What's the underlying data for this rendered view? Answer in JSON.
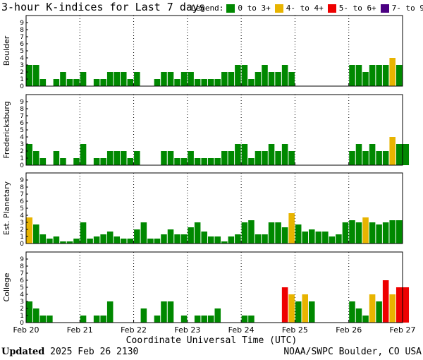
{
  "title": "3-hour K-indices for Last 7 days",
  "legend": {
    "label": "Legend:",
    "items": [
      {
        "label": "0 to 3+",
        "color": "#008800"
      },
      {
        "label": "4- to 4+",
        "color": "#e8b400"
      },
      {
        "label": "5- to 6+",
        "color": "#ee0000"
      },
      {
        "label": "7- to 9",
        "color": "#4b0082"
      }
    ]
  },
  "xaxis_title": "Coordinate Universal Time (UTC)",
  "updated_label": "Updated",
  "updated_value": "2025 Feb 26 2130",
  "credit": "NOAA/SWPC Boulder, CO USA",
  "chart_data": [
    {
      "type": "bar",
      "ylabel": "Boulder",
      "ylim": [
        0,
        9
      ],
      "yticks": [
        "0",
        "1",
        "2",
        "3",
        "4",
        "5",
        "6",
        "7",
        "8",
        "9"
      ],
      "xticks": [
        "Feb 20",
        "Feb 21",
        "Feb 22",
        "Feb 23",
        "Feb 24",
        "Feb 25",
        "Feb 26",
        "Feb 27"
      ],
      "values": [
        3,
        3,
        1,
        0,
        1,
        2,
        1,
        1,
        2,
        0,
        1,
        1,
        2,
        2,
        2,
        1,
        2,
        0,
        0,
        1,
        2,
        2,
        1,
        2,
        2,
        1,
        1,
        1,
        1,
        2,
        2,
        3,
        3,
        1,
        2,
        3,
        2,
        2,
        3,
        2,
        0,
        0,
        0,
        0,
        0,
        0,
        0,
        0,
        3,
        3,
        2,
        3,
        3,
        3,
        4,
        3,
        0
      ]
    },
    {
      "type": "bar",
      "ylabel": "Fredericksburg",
      "ylim": [
        0,
        9
      ],
      "yticks": [
        "0",
        "1",
        "2",
        "3",
        "4",
        "5",
        "6",
        "7",
        "8",
        "9"
      ],
      "xticks": [
        "Feb 20",
        "Feb 21",
        "Feb 22",
        "Feb 23",
        "Feb 24",
        "Feb 25",
        "Feb 26",
        "Feb 27"
      ],
      "values": [
        3,
        2,
        1,
        0,
        2,
        1,
        0,
        1,
        3,
        0,
        1,
        1,
        2,
        2,
        2,
        1,
        2,
        0,
        0,
        0,
        2,
        2,
        1,
        1,
        2,
        1,
        1,
        1,
        1,
        2,
        2,
        3,
        3,
        1,
        2,
        2,
        3,
        2,
        3,
        2,
        0,
        0,
        0,
        0,
        0,
        0,
        0,
        0,
        2,
        3,
        2,
        3,
        2,
        2,
        4,
        3,
        3
      ]
    },
    {
      "type": "bar",
      "ylabel": "Est. Planetary",
      "ylim": [
        0,
        9
      ],
      "yticks": [
        "0",
        "1",
        "2",
        "3",
        "4",
        "5",
        "6",
        "7",
        "8",
        "9"
      ],
      "xticks": [
        "Feb 20",
        "Feb 21",
        "Feb 22",
        "Feb 23",
        "Feb 24",
        "Feb 25",
        "Feb 26",
        "Feb 27"
      ],
      "values": [
        3.7,
        2.7,
        1.3,
        0.7,
        1,
        0.3,
        0.3,
        0.7,
        3,
        0.7,
        1,
        1.3,
        1.7,
        1,
        0.7,
        0.7,
        2,
        3,
        0.7,
        0.7,
        1.3,
        2,
        1.3,
        1.3,
        2.3,
        3,
        1.7,
        1,
        1,
        0.3,
        1,
        1.3,
        3,
        3.3,
        1.3,
        1.3,
        3,
        3,
        2.3,
        4.3,
        2.7,
        1.7,
        2,
        1.7,
        1.7,
        1,
        1.3,
        3,
        3.3,
        3,
        3.7,
        3,
        2.7,
        3,
        3.3,
        3.3
      ]
    },
    {
      "type": "bar",
      "ylabel": "College",
      "ylim": [
        0,
        9
      ],
      "yticks": [
        "0",
        "1",
        "2",
        "3",
        "4",
        "5",
        "6",
        "7",
        "8",
        "9"
      ],
      "xticks": [
        "Feb 20",
        "Feb 21",
        "Feb 22",
        "Feb 23",
        "Feb 24",
        "Feb 25",
        "Feb 26",
        "Feb 27"
      ],
      "values": [
        3,
        2,
        1,
        1,
        0,
        0,
        0,
        0,
        1,
        0,
        1,
        1,
        3,
        0,
        0,
        0,
        0,
        2,
        0,
        1,
        3,
        3,
        0,
        1,
        0,
        1,
        1,
        1,
        2,
        0,
        0,
        0,
        1,
        1,
        0,
        0,
        0,
        0,
        5,
        4,
        3,
        4,
        3,
        0,
        0,
        0,
        0,
        0,
        3,
        2,
        1,
        4,
        3,
        6,
        4,
        5,
        5
      ]
    }
  ]
}
